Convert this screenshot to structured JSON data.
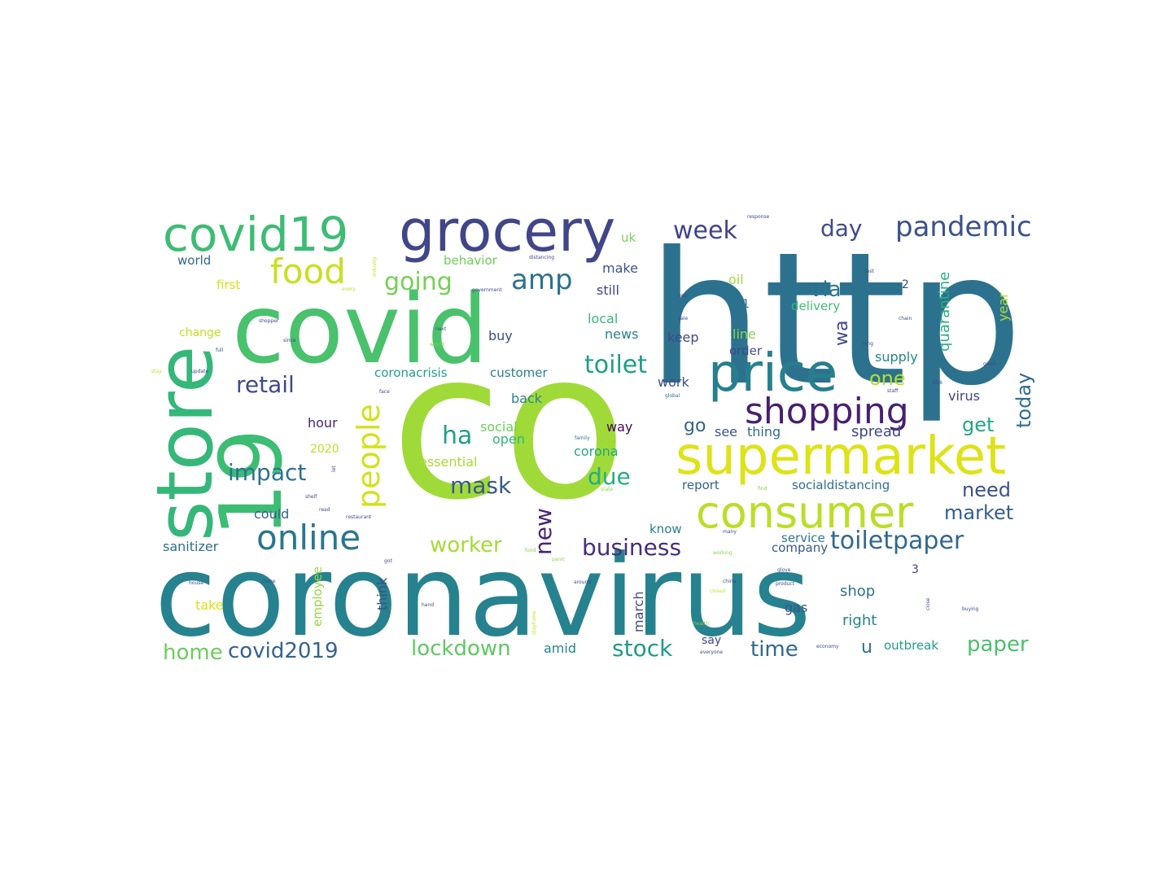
{
  "words": [
    {
      "text": "co",
      "color": "#a0da39"
    },
    {
      "text": "http",
      "color": "#2c728e"
    },
    {
      "text": "coronavirus",
      "color": "#26828e"
    },
    {
      "text": "covid",
      "color": "#4ac16d"
    },
    {
      "text": "19",
      "color": "#3dbc74"
    },
    {
      "text": "store",
      "color": "#35b779"
    },
    {
      "text": "grocery",
      "color": "#404688"
    },
    {
      "text": "covid19",
      "color": "#3dbc74"
    },
    {
      "text": "supermarket",
      "color": "#dde318"
    },
    {
      "text": "price",
      "color": "#277f8e"
    },
    {
      "text": "consumer",
      "color": "#bade28"
    },
    {
      "text": "shopping",
      "color": "#481f70"
    },
    {
      "text": "online",
      "color": "#2a768e"
    },
    {
      "text": "pandemic",
      "color": "#3b528b"
    },
    {
      "text": "food",
      "color": "#c8e020"
    },
    {
      "text": "people",
      "color": "#d2e21b"
    },
    {
      "text": "toiletpaper",
      "color": "#31688e"
    },
    {
      "text": "amp",
      "color": "#2c728e"
    },
    {
      "text": "going",
      "color": "#75d054"
    },
    {
      "text": "week",
      "color": "#414487"
    },
    {
      "text": "day",
      "color": "#3e4c8a"
    },
    {
      "text": "via",
      "color": "#2a768e"
    },
    {
      "text": "toilet",
      "color": "#1f9e89"
    },
    {
      "text": "retail",
      "color": "#3e4a89"
    },
    {
      "text": "impact",
      "color": "#2c728e"
    },
    {
      "text": "ha",
      "color": "#1fa088"
    },
    {
      "text": "mask",
      "color": "#38588c"
    },
    {
      "text": "due",
      "color": "#25ac82"
    },
    {
      "text": "business",
      "color": "#472d7b"
    },
    {
      "text": "worker",
      "color": "#a5db36"
    },
    {
      "text": "new",
      "color": "#482576"
    },
    {
      "text": "lockdown",
      "color": "#5ec962"
    },
    {
      "text": "stock",
      "color": "#1f9a8a"
    },
    {
      "text": "time",
      "color": "#31688e"
    },
    {
      "text": "paper",
      "color": "#4ac16d"
    },
    {
      "text": "home",
      "color": "#6ccd5a"
    },
    {
      "text": "covid2019",
      "color": "#33638d"
    },
    {
      "text": "market",
      "color": "#355f8d"
    },
    {
      "text": "need",
      "color": "#3b528b"
    },
    {
      "text": "get",
      "color": "#22a785"
    },
    {
      "text": "today",
      "color": "#2f6c8e"
    },
    {
      "text": "one",
      "color": "#b5de2b"
    },
    {
      "text": "wa",
      "color": "#3f4889"
    },
    {
      "text": "go",
      "color": "#34618d"
    },
    {
      "text": "quarantine",
      "color": "#29af7f"
    },
    {
      "text": "year",
      "color": "#addc30"
    },
    {
      "text": "supply",
      "color": "#23888e"
    },
    {
      "text": "virus",
      "color": "#414487"
    },
    {
      "text": "spread",
      "color": "#3f4788"
    },
    {
      "text": "thing",
      "color": "#2f6b8e"
    },
    {
      "text": "see",
      "color": "#3b528b"
    },
    {
      "text": "way",
      "color": "#46075a"
    },
    {
      "text": "corona",
      "color": "#22a884"
    },
    {
      "text": "open",
      "color": "#31b57b"
    },
    {
      "text": "social",
      "color": "#6ccd5a"
    },
    {
      "text": "essential",
      "color": "#a8db34"
    },
    {
      "text": "back",
      "color": "#26828e"
    },
    {
      "text": "coronacrisis",
      "color": "#1f9f88"
    },
    {
      "text": "customer",
      "color": "#277f8e"
    },
    {
      "text": "hour",
      "color": "#482475"
    },
    {
      "text": "2020",
      "color": "#c2df23"
    },
    {
      "text": "could",
      "color": "#34618d"
    },
    {
      "text": "sanitizer",
      "color": "#2e6f8e"
    },
    {
      "text": "employee",
      "color": "#98d83e"
    },
    {
      "text": "think",
      "color": "#3e4c8a"
    },
    {
      "text": "take",
      "color": "#d8e219"
    },
    {
      "text": "march",
      "color": "#3f4889"
    },
    {
      "text": "amid",
      "color": "#25848e"
    },
    {
      "text": "gas",
      "color": "#3b528b"
    },
    {
      "text": "company",
      "color": "#39558c"
    },
    {
      "text": "service",
      "color": "#2a788e"
    },
    {
      "text": "socialdistancing",
      "color": "#2e6e8e"
    },
    {
      "text": "report",
      "color": "#33638d"
    },
    {
      "text": "know",
      "color": "#26818e"
    },
    {
      "text": "shop",
      "color": "#2d708e"
    },
    {
      "text": "right",
      "color": "#25838e"
    },
    {
      "text": "say",
      "color": "#3e4a89"
    },
    {
      "text": "u",
      "color": "#2c738e"
    },
    {
      "text": "outbreak",
      "color": "#1f9e89"
    },
    {
      "text": "work",
      "color": "#3f4889"
    },
    {
      "text": "keep",
      "color": "#3f4889"
    },
    {
      "text": "news",
      "color": "#26828e"
    },
    {
      "text": "buy",
      "color": "#3e4c8a"
    },
    {
      "text": "local",
      "color": "#37b878"
    },
    {
      "text": "still",
      "color": "#414487"
    },
    {
      "text": "make",
      "color": "#3b528b"
    },
    {
      "text": "behavior",
      "color": "#6ece58"
    },
    {
      "text": "uk",
      "color": "#7ad151"
    },
    {
      "text": "oil",
      "color": "#9fda3a"
    },
    {
      "text": "delivery",
      "color": "#3fbc73"
    },
    {
      "text": "line",
      "color": "#86d549"
    },
    {
      "text": "order",
      "color": "#3e4a89"
    },
    {
      "text": "first",
      "color": "#d5e21a"
    },
    {
      "text": "world",
      "color": "#31688e"
    },
    {
      "text": "change",
      "color": "#c0df25"
    },
    {
      "text": "1",
      "color": "#2c728e"
    },
    {
      "text": "2",
      "color": "#3e4a89"
    },
    {
      "text": "3",
      "color": "#3e4a89"
    },
    {
      "text": "distancing",
      "color": "#404688"
    },
    {
      "text": "government",
      "color": "#404688"
    },
    {
      "text": "family",
      "color": "#2e6f8e"
    },
    {
      "text": "global",
      "color": "#2e6f8e"
    },
    {
      "text": "staff",
      "color": "#3e4a89"
    },
    {
      "text": "shelf",
      "color": "#3e4a89"
    },
    {
      "text": "restaurant",
      "color": "#3e4a89"
    },
    {
      "text": "read",
      "color": "#3e4a89"
    },
    {
      "text": "closed",
      "color": "#c0df25"
    },
    {
      "text": "food",
      "color": "#86d549"
    },
    {
      "text": "health",
      "color": "#86d549"
    },
    {
      "text": "buying",
      "color": "#3e4a89"
    },
    {
      "text": "close",
      "color": "#3e4a89"
    },
    {
      "text": "product",
      "color": "#3e4a89"
    },
    {
      "text": "glove",
      "color": "#3e4a89"
    },
    {
      "text": "around",
      "color": "#3e4a89"
    },
    {
      "text": "hand",
      "color": "#3e4a89"
    },
    {
      "text": "house",
      "color": "#3e4a89"
    },
    {
      "text": "come",
      "color": "#3e4a89"
    },
    {
      "text": "stayhome",
      "color": "#c0df25"
    },
    {
      "text": "response",
      "color": "#3e4a89"
    },
    {
      "text": "industry",
      "color": "#c0df25"
    },
    {
      "text": "every",
      "color": "#c0df25"
    },
    {
      "text": "shopper",
      "color": "#3e4a89"
    },
    {
      "text": "since",
      "color": "#3e4a89"
    },
    {
      "text": "sale",
      "color": "#3e4a89"
    },
    {
      "text": "chain",
      "color": "#3e4a89"
    },
    {
      "text": "good",
      "color": "#3e4a89"
    },
    {
      "text": "update",
      "color": "#3e4a89"
    },
    {
      "text": "stay",
      "color": "#c0df25"
    },
    {
      "text": "face",
      "color": "#3e4a89"
    },
    {
      "text": "china",
      "color": "#3e4a89"
    },
    {
      "text": "everyone",
      "color": "#3e4a89"
    },
    {
      "text": "economy",
      "color": "#3e4a89"
    },
    {
      "text": "working",
      "color": "#86d549"
    },
    {
      "text": "many",
      "color": "#3e4a89"
    },
    {
      "text": "state",
      "color": "#86d549"
    },
    {
      "text": "find",
      "color": "#86d549"
    },
    {
      "text": "panic",
      "color": "#86d549"
    },
    {
      "text": "last",
      "color": "#3e4a89"
    },
    {
      "text": "long",
      "color": "#3e4a89"
    },
    {
      "text": "look",
      "color": "#3e4a89"
    },
    {
      "text": "use",
      "color": "#3e4a89"
    },
    {
      "text": "next",
      "color": "#3e4a89"
    },
    {
      "text": "would",
      "color": "#86d549"
    },
    {
      "text": "full",
      "color": "#3e4a89"
    },
    {
      "text": "got",
      "color": "#3e4a89"
    },
    {
      "text": "let",
      "color": "#3e4a89"
    }
  ]
}
